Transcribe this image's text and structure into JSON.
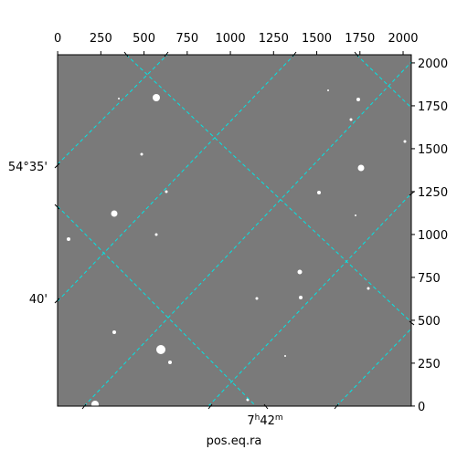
{
  "chart_data": {
    "type": "image",
    "xlabel": "pos.eq.ra",
    "xlim": [
      -0.5,
      2047.5
    ],
    "ylim": [
      -0.5,
      2047.5
    ],
    "xticks": [
      0,
      250,
      500,
      750,
      1000,
      1250,
      1500,
      1750,
      2000
    ],
    "yticks": [
      0,
      250,
      500,
      750,
      1000,
      1250,
      1500,
      1750,
      2000
    ],
    "dec_ticks": [
      "54°35'",
      "40'"
    ],
    "ra_tick": {
      "hours": "7",
      "h": "h",
      "minutes": "42",
      "m": "m"
    }
  }
}
